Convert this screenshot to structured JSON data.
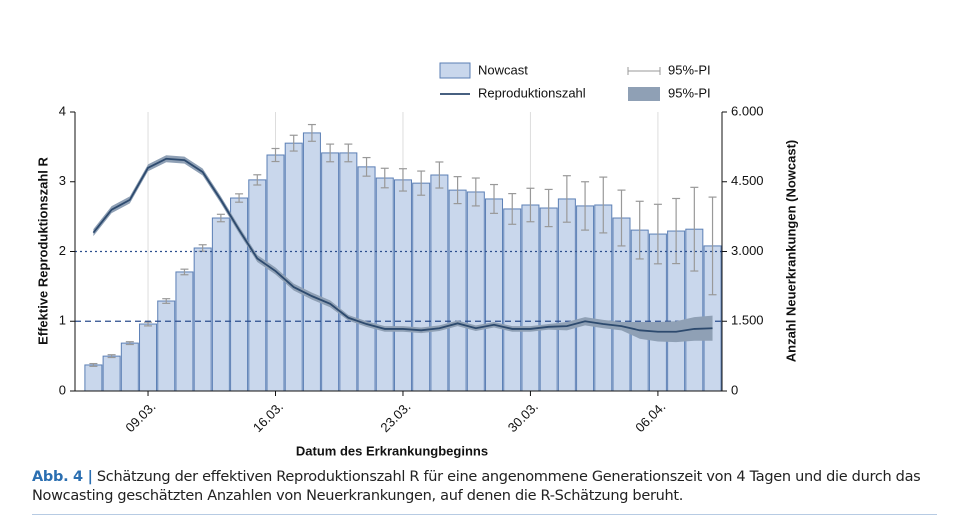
{
  "chart_data": {
    "type": "bar_line",
    "categories": [
      null,
      null,
      null,
      "09.03.",
      null,
      null,
      null,
      null,
      null,
      null,
      "16.03.",
      null,
      null,
      null,
      null,
      null,
      null,
      "23.03.",
      null,
      null,
      null,
      null,
      null,
      null,
      "30.03.",
      null,
      null,
      null,
      null,
      null,
      null,
      "06.04.",
      null,
      null,
      null
    ],
    "xlabel": "Datum des Erkrankungbeginns",
    "ylabel": "Effektive Reproduktionszahl R",
    "y2label": "Anzahl Neuerkrankungen (Nowcast)",
    "ylim": [
      0,
      4
    ],
    "yticks": [
      0,
      1,
      2,
      3,
      4
    ],
    "y2lim": [
      0,
      6000
    ],
    "y2ticks": [
      0,
      {
        "value": 1500,
        "label": "1.500"
      },
      {
        "value": 3000,
        "label": "3.000"
      },
      {
        "value": 4500,
        "label": "4.500"
      },
      {
        "value": 6000,
        "label": "6.000"
      }
    ],
    "reference_lines": [
      {
        "value": 1,
        "style": "dashed"
      },
      {
        "value": 2,
        "style": "dotted"
      }
    ],
    "grid": "x",
    "series": [
      {
        "name": "Nowcast",
        "type": "bar",
        "axis": "y2",
        "color": "#c9d7ec",
        "edge_color": "#5b7fb5",
        "values": [
          560,
          750,
          1030,
          1440,
          1935,
          2560,
          3075,
          3720,
          4150,
          4540,
          5075,
          5330,
          5550,
          5120,
          5120,
          4820,
          4580,
          4540,
          4470,
          4645,
          4320,
          4280,
          4130,
          3915,
          4000,
          3935,
          4130,
          3980,
          4000,
          3720,
          3460,
          3375,
          3440,
          3480,
          3120
        ],
        "pi_name": "95%-PI",
        "pi_color": "#999999",
        "pi_low": [
          530,
          720,
          1000,
          1400,
          1885,
          2500,
          3005,
          3640,
          4060,
          4430,
          4935,
          5160,
          5370,
          4930,
          4930,
          4620,
          4370,
          4300,
          4210,
          4365,
          4030,
          3980,
          3820,
          3585,
          3640,
          3535,
          3630,
          3460,
          3400,
          3120,
          2840,
          2735,
          2740,
          2580,
          2070
        ],
        "pi_high": [
          590,
          780,
          1060,
          1480,
          1985,
          2620,
          3145,
          3800,
          4240,
          4650,
          5215,
          5500,
          5730,
          5310,
          5310,
          5020,
          4790,
          4780,
          4730,
          4925,
          4610,
          4580,
          4440,
          4245,
          4360,
          4335,
          4630,
          4500,
          4600,
          4320,
          4080,
          4015,
          4140,
          4380,
          4170
        ]
      },
      {
        "name": "Reproduktionszahl",
        "type": "line",
        "axis": "y",
        "color": "#2d4a6e",
        "values": [
          2.27,
          2.6,
          2.74,
          3.2,
          3.33,
          3.31,
          3.14,
          2.74,
          2.31,
          1.9,
          1.72,
          1.49,
          1.36,
          1.25,
          1.05,
          0.96,
          0.89,
          0.89,
          0.87,
          0.9,
          0.97,
          0.9,
          0.95,
          0.89,
          0.89,
          0.92,
          0.93,
          1.0,
          0.96,
          0.93,
          0.87,
          0.85,
          0.85,
          0.89,
          0.9
        ],
        "band_name": "95%-PI",
        "band_color": "#8fa0b5",
        "band_low": [
          2.22,
          2.55,
          2.69,
          3.15,
          3.28,
          3.26,
          3.09,
          2.69,
          2.26,
          1.85,
          1.67,
          1.44,
          1.31,
          1.2,
          1.01,
          0.92,
          0.85,
          0.85,
          0.83,
          0.86,
          0.93,
          0.86,
          0.91,
          0.85,
          0.85,
          0.88,
          0.87,
          0.94,
          0.9,
          0.87,
          0.75,
          0.71,
          0.7,
          0.72,
          0.72
        ],
        "band_high": [
          2.32,
          2.65,
          2.79,
          3.25,
          3.38,
          3.36,
          3.19,
          2.79,
          2.36,
          1.95,
          1.77,
          1.54,
          1.41,
          1.3,
          1.09,
          1.0,
          0.93,
          0.93,
          0.91,
          0.94,
          1.01,
          0.94,
          0.99,
          0.93,
          0.93,
          0.96,
          0.99,
          1.06,
          1.02,
          0.99,
          0.99,
          0.99,
          1.0,
          1.06,
          1.08
        ]
      }
    ]
  },
  "caption": {
    "label": "Abb. 4 |",
    "text": "Schätzung der effektiven Reproduktionszahl R für eine angenommene Generationszeit von 4 Tagen und die durch das Nowcasting geschätzten Anzahlen von Neuerkrankungen, auf denen die R-Schätzung beruht."
  }
}
